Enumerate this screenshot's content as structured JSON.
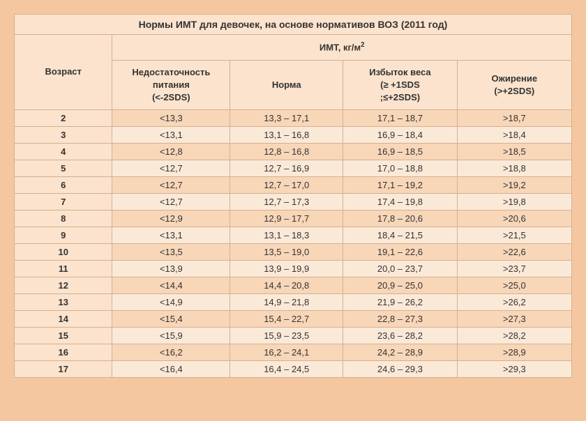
{
  "title": "Нормы ИМТ для девочек, на основе нормативов ВОЗ (2011 год)",
  "unit_header": "ИМТ, кг/м",
  "unit_sup": "2",
  "columns": {
    "age": "Возраст",
    "underweight_l1": "Недостаточность",
    "underweight_l2": "питания",
    "underweight_l3": "(<-2SDS)",
    "normal": "Норма",
    "overweight_l1": "Избыток веса",
    "overweight_l2": "(≥ +1SDS",
    "overweight_l3": ";≤+2SDS)",
    "obesity_l1": "Ожирение",
    "obesity_l2": "(>+2SDS)"
  },
  "rows": [
    {
      "age": "2",
      "under": "<13,3",
      "norm": "13,3 – 17,1",
      "over": "17,1 – 18,7",
      "obes": ">18,7"
    },
    {
      "age": "3",
      "under": "<13,1",
      "norm": "13,1 – 16,8",
      "over": "16,9 – 18,4",
      "obes": ">18,4"
    },
    {
      "age": "4",
      "under": "<12,8",
      "norm": "12,8 – 16,8",
      "over": "16,9 – 18,5",
      "obes": ">18,5"
    },
    {
      "age": "5",
      "under": "<12,7",
      "norm": "12,7 – 16,9",
      "over": "17,0 – 18,8",
      "obes": ">18,8"
    },
    {
      "age": "6",
      "under": "<12,7",
      "norm": "12,7 – 17,0",
      "over": "17,1 – 19,2",
      "obes": ">19,2"
    },
    {
      "age": "7",
      "under": "<12,7",
      "norm": "12,7 – 17,3",
      "over": "17,4 – 19,8",
      "obes": ">19,8"
    },
    {
      "age": "8",
      "under": "<12,9",
      "norm": "12,9 – 17,7",
      "over": "17,8 – 20,6",
      "obes": ">20,6"
    },
    {
      "age": "9",
      "under": "<13,1",
      "norm": "13,1 – 18,3",
      "over": "18,4 – 21,5",
      "obes": ">21,5"
    },
    {
      "age": "10",
      "under": "<13,5",
      "norm": "13,5 – 19,0",
      "over": "19,1 – 22,6",
      "obes": ">22,6"
    },
    {
      "age": "11",
      "under": "<13,9",
      "norm": "13,9 – 19,9",
      "over": "20,0 – 23,7",
      "obes": ">23,7"
    },
    {
      "age": "12",
      "under": "<14,4",
      "norm": "14,4 – 20,8",
      "over": "20,9 – 25,0",
      "obes": ">25,0"
    },
    {
      "age": "13",
      "under": "<14,9",
      "norm": "14,9 – 21,8",
      "over": "21,9 – 26,2",
      "obes": ">26,2"
    },
    {
      "age": "14",
      "under": "<15,4",
      "norm": "15,4 – 22,7",
      "over": "22,8 – 27,3",
      "obes": ">27,3"
    },
    {
      "age": "15",
      "under": "<15,9",
      "norm": "15,9 – 23,5",
      "over": "23,6 – 28,2",
      "obes": ">28,2"
    },
    {
      "age": "16",
      "under": "<16,2",
      "norm": "16,2 – 24,1",
      "over": "24,2 – 28,9",
      "obes": ">28,9"
    },
    {
      "age": "17",
      "under": "<16,4",
      "norm": "16,4 – 24,5",
      "over": "24,6 – 29,3",
      "obes": ">29,3"
    }
  ],
  "colors": {
    "page_bg": "#f5c7a0",
    "header_bg": "#fbe3cd",
    "row_odd": "#f8d6b8",
    "row_even": "#fbe9d8",
    "border": "#d4b090"
  }
}
